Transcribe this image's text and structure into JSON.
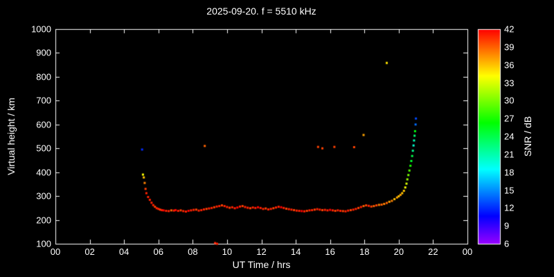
{
  "chart_data": {
    "type": "scatter",
    "title": "2025-09-20. f = 5510 kHz",
    "xlabel": "UT Time / hrs",
    "ylabel": "Virtual height / km",
    "colorbar_label": "SNR / dB",
    "xlim": [
      0,
      24
    ],
    "ylim": [
      100,
      1000
    ],
    "x_tick_values": [
      0,
      2,
      4,
      6,
      8,
      10,
      12,
      14,
      16,
      18,
      20,
      22,
      24
    ],
    "x_tick_labels": [
      "00",
      "02",
      "04",
      "06",
      "08",
      "10",
      "12",
      "14",
      "16",
      "18",
      "20",
      "22",
      "00"
    ],
    "y_tick_values": [
      100,
      200,
      300,
      400,
      500,
      600,
      700,
      800,
      900,
      1000
    ],
    "y_tick_labels": [
      "100",
      "200",
      "300",
      "400",
      "500",
      "600",
      "700",
      "800",
      "900",
      "1000"
    ],
    "colorbar_range": [
      6,
      42
    ],
    "colorbar_tick_values": [
      42,
      39,
      36,
      33,
      30,
      27,
      24,
      21,
      18,
      15,
      12,
      9,
      6
    ],
    "colorbar_tick_labels": [
      "42",
      "39",
      "36",
      "33",
      "30",
      "27",
      "24",
      "21",
      "18",
      "15",
      "12",
      "9",
      "6"
    ],
    "background_color": "#000000",
    "axis_color": "#ffffff",
    "points": [
      [
        5.05,
        495,
        12
      ],
      [
        5.1,
        390,
        34
      ],
      [
        5.15,
        378,
        36
      ],
      [
        5.2,
        355,
        38
      ],
      [
        5.25,
        330,
        40
      ],
      [
        5.3,
        312,
        41
      ],
      [
        5.4,
        296,
        41
      ],
      [
        5.5,
        284,
        41
      ],
      [
        5.6,
        272,
        41
      ],
      [
        5.7,
        262,
        41
      ],
      [
        5.8,
        255,
        40
      ],
      [
        5.9,
        249,
        41
      ],
      [
        6.0,
        246,
        41
      ],
      [
        6.1,
        243,
        40
      ],
      [
        6.2,
        241,
        41
      ],
      [
        6.3,
        240,
        42
      ],
      [
        6.45,
        238,
        41
      ],
      [
        6.6,
        237,
        41
      ],
      [
        6.75,
        240,
        39
      ],
      [
        6.9,
        239,
        41
      ],
      [
        7.0,
        241,
        42
      ],
      [
        7.15,
        238,
        41
      ],
      [
        7.3,
        240,
        40
      ],
      [
        7.45,
        237,
        41
      ],
      [
        7.6,
        235,
        41
      ],
      [
        7.75,
        238,
        42
      ],
      [
        7.9,
        240,
        41
      ],
      [
        8.05,
        242,
        41
      ],
      [
        8.2,
        243,
        40
      ],
      [
        8.35,
        239,
        41
      ],
      [
        8.5,
        241,
        41
      ],
      [
        8.65,
        244,
        41
      ],
      [
        8.8,
        246,
        40
      ],
      [
        8.95,
        248,
        41
      ],
      [
        9.1,
        250,
        41
      ],
      [
        9.25,
        253,
        40
      ],
      [
        9.4,
        256,
        41
      ],
      [
        9.55,
        258,
        41
      ],
      [
        9.7,
        261,
        40
      ],
      [
        9.85,
        258,
        41
      ],
      [
        10.0,
        254,
        41
      ],
      [
        10.15,
        251,
        40
      ],
      [
        10.3,
        253,
        41
      ],
      [
        10.45,
        249,
        41
      ],
      [
        10.6,
        252,
        42
      ],
      [
        10.75,
        256,
        41
      ],
      [
        10.9,
        258,
        40
      ],
      [
        11.05,
        254,
        41
      ],
      [
        11.2,
        251,
        41
      ],
      [
        11.35,
        249,
        40
      ],
      [
        11.5,
        252,
        41
      ],
      [
        11.65,
        250,
        41
      ],
      [
        11.8,
        253,
        42
      ],
      [
        11.95,
        250,
        41
      ],
      [
        12.1,
        246,
        41
      ],
      [
        12.25,
        248,
        40
      ],
      [
        12.4,
        244,
        41
      ],
      [
        12.55,
        246,
        41
      ],
      [
        12.7,
        249,
        40
      ],
      [
        12.85,
        252,
        41
      ],
      [
        13.0,
        255,
        41
      ],
      [
        13.15,
        253,
        42
      ],
      [
        13.3,
        250,
        41
      ],
      [
        13.45,
        247,
        40
      ],
      [
        13.6,
        245,
        41
      ],
      [
        13.75,
        243,
        41
      ],
      [
        13.9,
        241,
        40
      ],
      [
        14.05,
        239,
        41
      ],
      [
        14.2,
        238,
        41
      ],
      [
        14.35,
        237,
        42
      ],
      [
        14.5,
        236,
        41
      ],
      [
        14.65,
        238,
        40
      ],
      [
        14.8,
        240,
        41
      ],
      [
        14.95,
        241,
        41
      ],
      [
        15.1,
        243,
        40
      ],
      [
        15.25,
        245,
        41
      ],
      [
        15.4,
        243,
        41
      ],
      [
        15.55,
        241,
        40
      ],
      [
        15.7,
        242,
        41
      ],
      [
        15.85,
        240,
        41
      ],
      [
        16.0,
        242,
        42
      ],
      [
        16.15,
        240,
        41
      ],
      [
        16.3,
        238,
        40
      ],
      [
        16.45,
        240,
        41
      ],
      [
        16.6,
        238,
        41
      ],
      [
        16.75,
        237,
        40
      ],
      [
        16.9,
        236,
        41
      ],
      [
        17.05,
        239,
        41
      ],
      [
        17.2,
        241,
        40
      ],
      [
        17.35,
        243,
        41
      ],
      [
        17.5,
        246,
        41
      ],
      [
        17.65,
        250,
        40
      ],
      [
        17.8,
        254,
        41
      ],
      [
        17.95,
        258,
        39
      ],
      [
        18.1,
        261,
        40
      ],
      [
        18.25,
        259,
        41
      ],
      [
        18.4,
        256,
        40
      ],
      [
        18.55,
        258,
        39
      ],
      [
        18.7,
        261,
        40
      ],
      [
        18.85,
        263,
        38
      ],
      [
        19.0,
        264,
        39
      ],
      [
        19.15,
        267,
        38
      ],
      [
        19.3,
        271,
        39
      ],
      [
        19.45,
        276,
        37
      ],
      [
        19.6,
        280,
        38
      ],
      [
        19.75,
        287,
        36
      ],
      [
        19.9,
        294,
        37
      ],
      [
        20.0,
        299,
        36
      ],
      [
        20.1,
        305,
        37
      ],
      [
        20.2,
        312,
        36
      ],
      [
        8.7,
        510,
        39
      ],
      [
        9.3,
        103,
        41
      ],
      [
        9.42,
        100,
        41
      ],
      [
        15.3,
        506,
        40
      ],
      [
        15.55,
        500,
        40
      ],
      [
        16.25,
        506,
        40
      ],
      [
        17.4,
        505,
        40
      ],
      [
        17.95,
        556,
        37
      ],
      [
        19.3,
        858,
        35
      ],
      [
        20.3,
        322,
        36
      ],
      [
        20.38,
        336,
        34
      ],
      [
        20.45,
        352,
        33
      ],
      [
        20.5,
        370,
        31
      ],
      [
        20.56,
        388,
        30
      ],
      [
        20.62,
        407,
        29
      ],
      [
        20.68,
        427,
        27
      ],
      [
        20.73,
        447,
        25
      ],
      [
        20.78,
        468,
        24
      ],
      [
        20.82,
        490,
        22
      ],
      [
        20.86,
        512,
        20
      ],
      [
        20.89,
        533,
        21
      ],
      [
        20.92,
        553,
        23
      ],
      [
        20.95,
        572,
        26
      ],
      [
        20.98,
        600,
        14
      ],
      [
        21.0,
        625,
        13
      ]
    ]
  }
}
